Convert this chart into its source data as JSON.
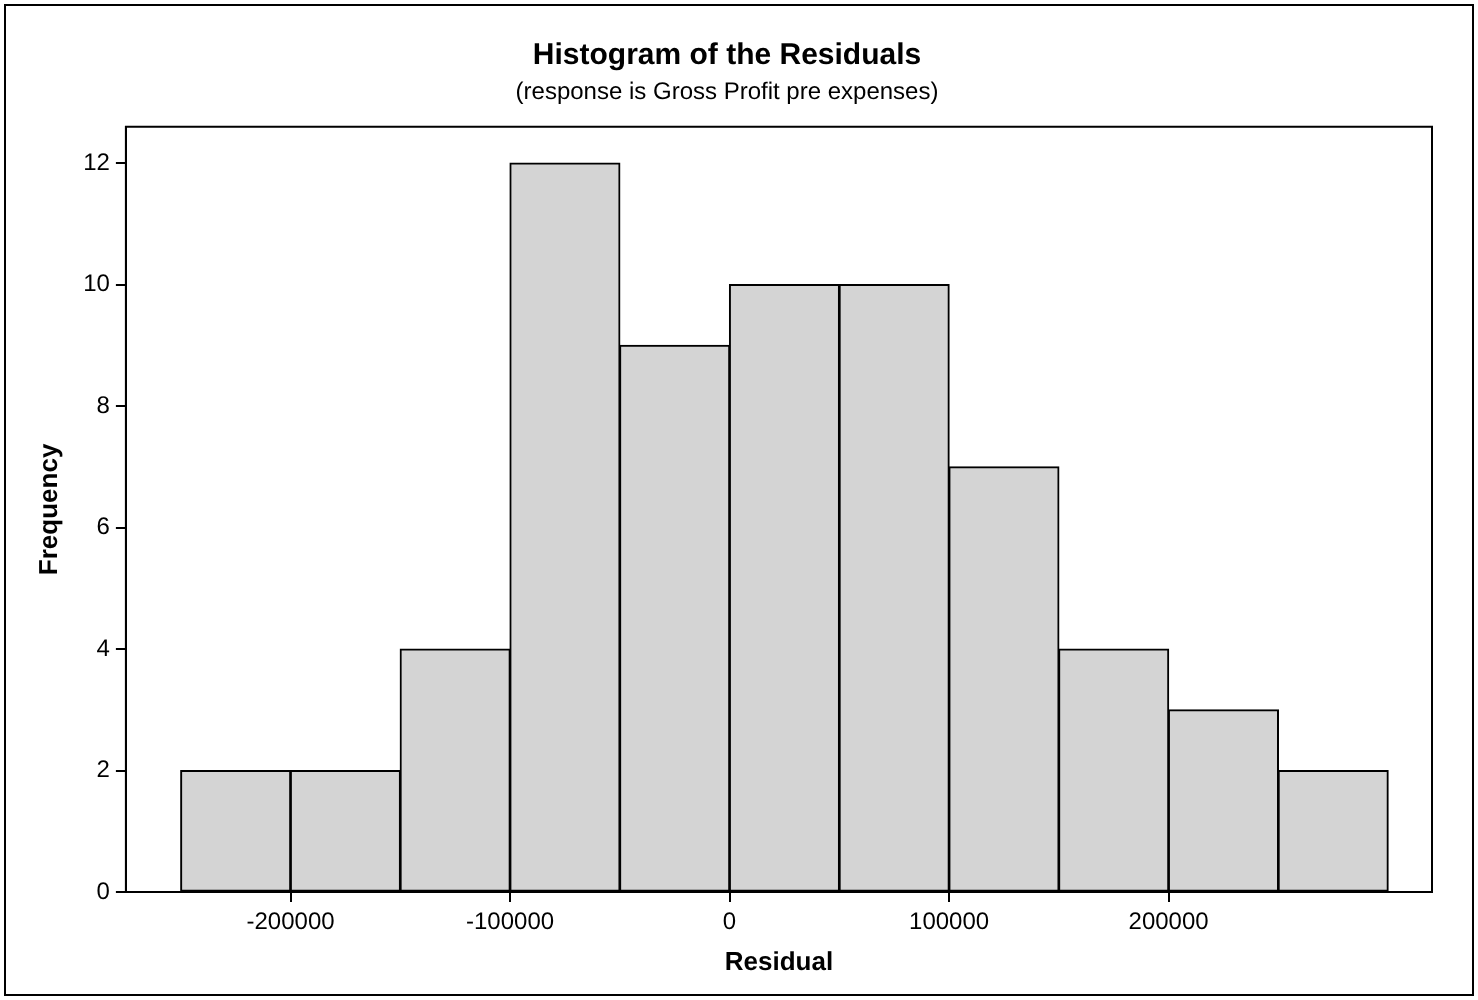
{
  "chart_data": {
    "type": "histogram",
    "title": "Histogram of the Residuals",
    "subtitle": "(response is Gross Profit pre expenses)",
    "xlabel": "Residual",
    "ylabel": "Frequency",
    "bins": [
      -250000,
      -200000,
      -150000,
      -100000,
      -50000,
      0,
      50000,
      100000,
      150000,
      200000,
      250000,
      300000
    ],
    "values": [
      2,
      2,
      4,
      12,
      9,
      10,
      10,
      7,
      4,
      3,
      2
    ],
    "color": "#d4d4d4",
    "xlim": [
      -275000,
      320000
    ],
    "xticks": [
      -200000,
      -100000,
      0,
      100000,
      200000
    ],
    "ylim": [
      0,
      12.6
    ],
    "yticks": [
      0,
      2,
      4,
      6,
      8,
      10,
      12
    ],
    "grid": false,
    "legend": false
  }
}
